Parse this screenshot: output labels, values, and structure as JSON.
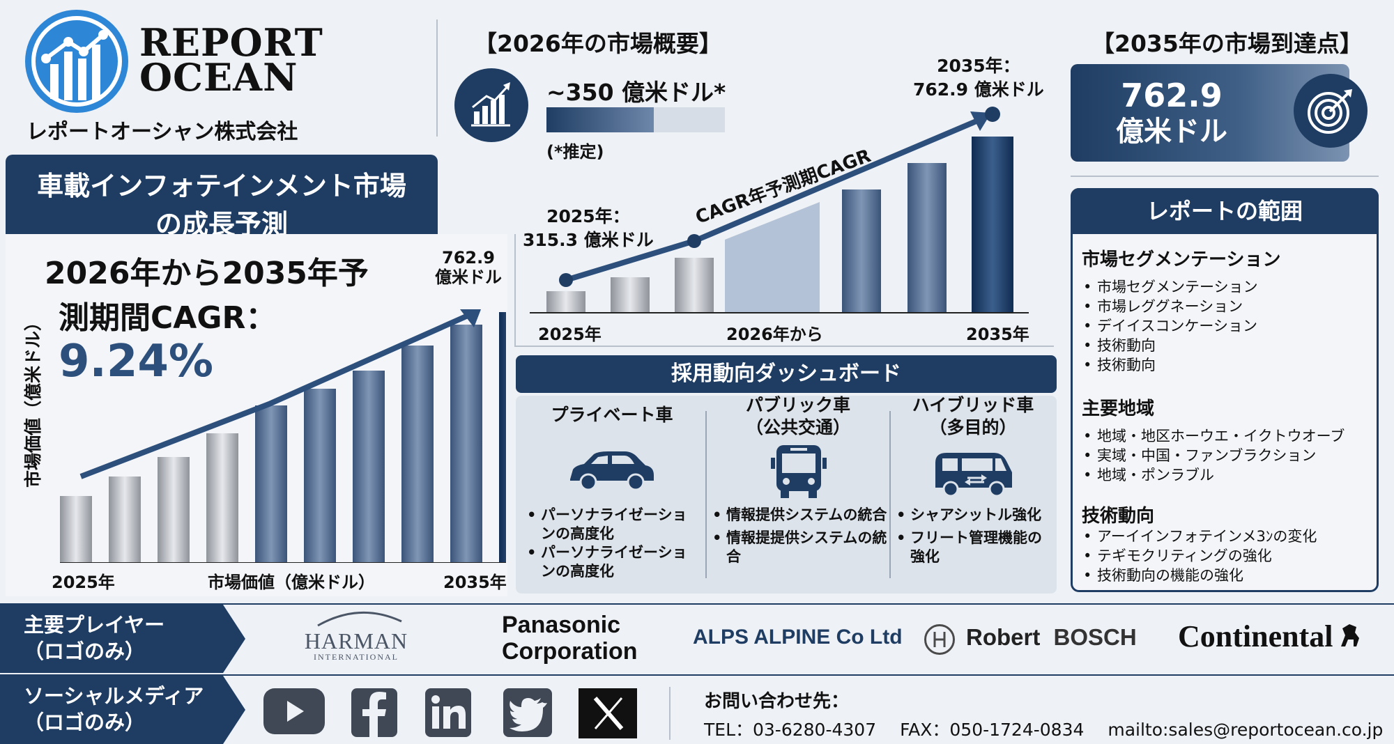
{
  "brand": {
    "name_line1": "REPORT",
    "name_line2": "OCEAN",
    "jp_name": "レポートオーシャン株式会社"
  },
  "left": {
    "title_line1": "車載インフォテインメント市場",
    "title_line2": "の成長予測",
    "cagr_line1": "2026年から2035年予",
    "cagr_line2": "測期間CAGR：",
    "cagr_value": "9.24%",
    "y_axis_label": "市場価値（億米ドル）",
    "x_start": "2025年",
    "x_mid": "市場価値（億米ドル）",
    "x_end": "2035年",
    "end_label_1": "762.9",
    "end_label_2": "億米ドル"
  },
  "center": {
    "title": "【2026年の市場概要】",
    "value": "~350 億米ドル*",
    "note": "(*推定)",
    "start_label_1": "2025年：",
    "start_label_2": "315.3 億米ドル",
    "end_label_1": "2035年：",
    "end_label_2": "762.9 億米ドル",
    "cagr_arrow_label": "CAGR年予測期CAGR",
    "x_start": "2025年",
    "x_mid": "2026年から",
    "x_end": "2035年"
  },
  "right": {
    "title": "【2035年の市場到達点】",
    "value_line1": "762.9",
    "value_line2": "億米ドル",
    "scope_title": "レポートの範囲",
    "sec1_title": "市場セグメンテーション",
    "sec1_items": [
      "市場セグメンテーション",
      "市場レググネーション",
      "デイイスコンケーション",
      "技術動向",
      "技術動向"
    ],
    "sec2_title": "主要地域",
    "sec2_items": [
      "地域・地区ホーウエ・イクトウオーブ",
      "実域・中国・ファンブラクション",
      "地域・ポンラブル"
    ],
    "sec3_title": "技術動向",
    "sec3_items": [
      "アーイインフォテインメ3ﾝの変化",
      "テギモクリティングの強化",
      "技術動向の機能の強化"
    ]
  },
  "dashboard": {
    "title": "採用動向ダッシュボード",
    "cols": [
      {
        "title_1": "プライベート車",
        "title_2": "",
        "icon": "car-icon",
        "items": [
          "パーソナライゼーションの高度化",
          "パーソナライゼーションの高度化"
        ]
      },
      {
        "title_1": "パブリック車",
        "title_2": "（公共交通）",
        "icon": "bus-icon",
        "items": [
          "情報提供システムの統合",
          "情報提提供システムの統合"
        ]
      },
      {
        "title_1": "ハイブリッド車",
        "title_2": "（多目的）",
        "icon": "van-icon",
        "items": [
          "シャアシットル強化",
          "フリート管理機能の強化"
        ]
      }
    ]
  },
  "players": {
    "label_1": "主要プレイヤー",
    "label_2": "（ロゴのみ）",
    "harman_1": "HARMAN",
    "harman_2": "INTERNATIONAL",
    "panasonic_1": "Panasonic",
    "panasonic_2": "Corporation",
    "alps": "ALPS ALPINE Co Ltd",
    "bosch_1": "Robert",
    "bosch_2": "BOSCH",
    "continental": "Continental"
  },
  "social": {
    "label_1": "ソーシャルメディア",
    "label_2": "（ロゴのみ）",
    "icons": [
      "youtube-icon",
      "facebook-icon",
      "linkedin-icon",
      "twitter-icon",
      "x-icon"
    ],
    "contact_title": "お問い合わせ先：",
    "tel": "TEL：03-6280-4307",
    "fax": "FAX：050-1724-0834",
    "mail": "mailto:sales@reportocean.co.jp"
  },
  "colors": {
    "navy": "#1f3d63",
    "accent_blue": "#2e86d6",
    "bg": "#eef1f5"
  }
}
